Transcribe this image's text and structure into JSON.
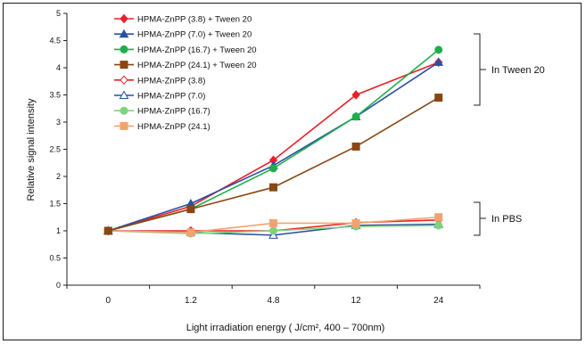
{
  "chart_data": {
    "type": "line",
    "categories": [
      "0",
      "1.2",
      "4.8",
      "12",
      "24"
    ],
    "ylabel": "Relative signal intensity",
    "xlabel": "Light irradiation energy ( J/cm², 400 – 700nm)",
    "ylim": [
      0,
      5
    ],
    "yticks": [
      "0",
      "0.5",
      "1",
      "1.5",
      "2",
      "2.5",
      "3",
      "3.5",
      "4",
      "4.5",
      "5"
    ],
    "legend_position": "top-left",
    "series": [
      {
        "name": "HPMA-ZnPP (3.8) + Tween 20",
        "color": "#e8202a",
        "marker": "diamond",
        "filled": true,
        "values": [
          1,
          1.45,
          2.3,
          3.5,
          4.1
        ]
      },
      {
        "name": "HPMA-ZnPP (7.0) + Tween 20",
        "color": "#2a4fa3",
        "marker": "triangle",
        "filled": true,
        "values": [
          1,
          1.5,
          2.2,
          3.1,
          4.1
        ]
      },
      {
        "name": "HPMA-ZnPP (16.7) + Tween 20",
        "color": "#1fae4a",
        "marker": "circle",
        "filled": true,
        "values": [
          1,
          1.4,
          2.15,
          3.1,
          4.33
        ]
      },
      {
        "name": "HPMA-ZnPP (24.1) + Tween 20",
        "color": "#8a4613",
        "marker": "square",
        "filled": true,
        "values": [
          1,
          1.4,
          1.8,
          2.55,
          3.45
        ]
      },
      {
        "name": "HPMA-ZnPP (3.8)",
        "color": "#e8202a",
        "marker": "diamond",
        "filled": false,
        "values": [
          1,
          1.0,
          1.0,
          1.15,
          1.2
        ]
      },
      {
        "name": "HPMA-ZnPP (7.0)",
        "color": "#2a4fa3",
        "marker": "triangle",
        "filled": false,
        "values": [
          1,
          0.97,
          0.92,
          1.1,
          1.12
        ]
      },
      {
        "name": "HPMA-ZnPP (16.7)",
        "color": "#7fd27f",
        "marker": "circle",
        "filled": true,
        "values": [
          1,
          0.95,
          1.0,
          1.08,
          1.1
        ]
      },
      {
        "name": "HPMA-ZnPP (24.1)",
        "color": "#f2a36d",
        "marker": "square",
        "filled": true,
        "values": [
          1,
          0.97,
          1.14,
          1.14,
          1.25
        ]
      }
    ],
    "annotations": [
      "In Tween 20",
      "In PBS"
    ]
  }
}
